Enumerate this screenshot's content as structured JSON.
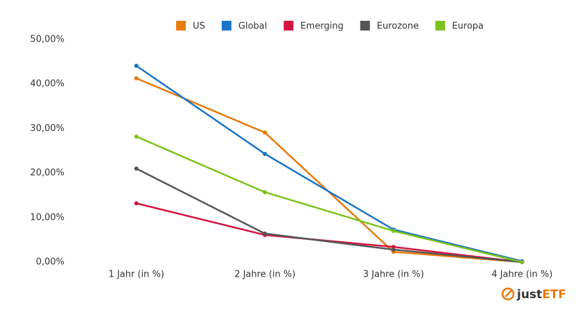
{
  "chart_data": {
    "type": "line",
    "categories": [
      "1 Jahr (in %)",
      "2 Jahre (in %)",
      "3 Jahre (in %)",
      "4 Jahre (in %)"
    ],
    "series": [
      {
        "name": "US",
        "color": "#e8790b",
        "values": [
          41.3,
          29.1,
          2.3,
          0
        ]
      },
      {
        "name": "Global",
        "color": "#1a73c8",
        "values": [
          44.1,
          24.3,
          7.3,
          0.2
        ]
      },
      {
        "name": "Emerging",
        "color": "#d3163f",
        "values": [
          13.2,
          6.1,
          3.4,
          0
        ]
      },
      {
        "name": "Eurozone",
        "color": "#555555",
        "values": [
          21.0,
          6.4,
          2.8,
          0
        ]
      },
      {
        "name": "Europa",
        "color": "#7cc21c",
        "values": [
          28.2,
          15.7,
          7.0,
          0
        ]
      }
    ],
    "ylim": [
      0,
      50
    ],
    "yticks": [
      {
        "value": 0,
        "label": "0,00%"
      },
      {
        "value": 10,
        "label": "10,00%"
      },
      {
        "value": 20,
        "label": "20,00%"
      },
      {
        "value": 30,
        "label": "30,00%"
      },
      {
        "value": 40,
        "label": "40,00%"
      },
      {
        "value": 50,
        "label": "50,00%"
      }
    ],
    "grid": false,
    "legend": "top",
    "branding": [
      "just",
      "ETF"
    ]
  }
}
